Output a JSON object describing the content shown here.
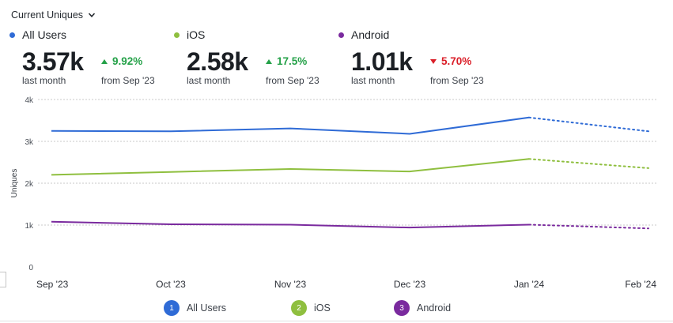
{
  "header": {
    "dropdown_label": "Current Uniques"
  },
  "metrics": [
    {
      "name": "All Users",
      "color": "#2f6bd6",
      "value": "3.57k",
      "value_caption": "last month",
      "change": "9.92%",
      "direction": "up",
      "change_color": "#24a148",
      "from": "from Sep '23"
    },
    {
      "name": "iOS",
      "color": "#8fbf3f",
      "value": "2.58k",
      "value_caption": "last month",
      "change": "17.5%",
      "direction": "up",
      "change_color": "#24a148",
      "from": "from Sep '23"
    },
    {
      "name": "Android",
      "color": "#7a2a9e",
      "value": "1.01k",
      "value_caption": "last month",
      "change": "5.70%",
      "direction": "down",
      "change_color": "#da1e28",
      "from": "from Sep '23"
    }
  ],
  "chart_data": {
    "type": "line",
    "ylabel": "Uniques",
    "xlabel": "",
    "categories": [
      "Sep '23",
      "Oct '23",
      "Nov '23",
      "Dec '23",
      "Jan '24",
      "Feb '24"
    ],
    "y_ticks": [
      0,
      1000,
      2000,
      3000,
      4000
    ],
    "y_tick_labels": [
      "0",
      "1k",
      "2k",
      "3k",
      "4k"
    ],
    "ylim": [
      0,
      4000
    ],
    "grid": true,
    "forecast_from_index": 4,
    "series": [
      {
        "name": "All Users",
        "badge": "1",
        "color": "#2f6bd6",
        "values": [
          3250,
          3240,
          3310,
          3180,
          3570,
          3240
        ]
      },
      {
        "name": "iOS",
        "badge": "2",
        "color": "#8fbf3f",
        "values": [
          2200,
          2270,
          2340,
          2280,
          2580,
          2360
        ]
      },
      {
        "name": "Android",
        "badge": "3",
        "color": "#7a2a9e",
        "values": [
          1080,
          1020,
          1010,
          940,
          1010,
          920
        ]
      }
    ],
    "legend_position": "bottom"
  }
}
